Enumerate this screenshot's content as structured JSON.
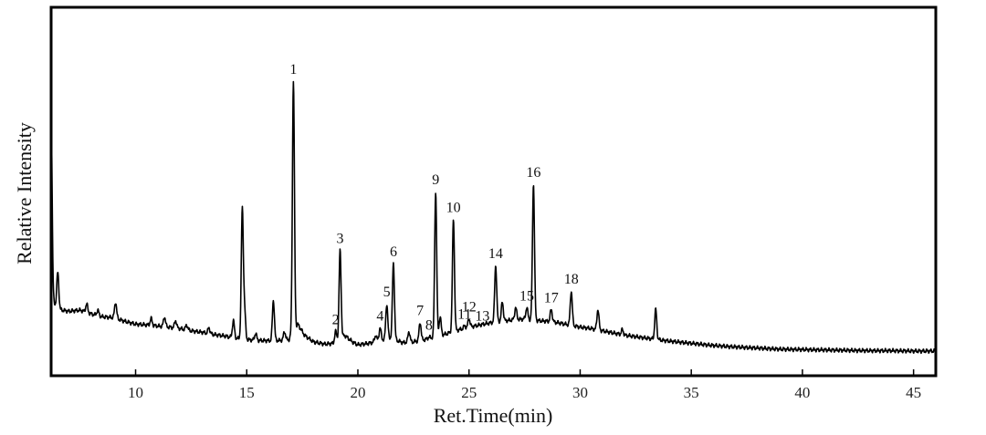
{
  "chart_data": {
    "type": "line",
    "title": "",
    "xlabel": "Ret.Time(min)",
    "ylabel": "Relative Intensity",
    "xlim": [
      6.2,
      46
    ],
    "ylim": [
      0,
      100
    ],
    "x_ticks": [
      10,
      15,
      20,
      25,
      30,
      35,
      40,
      45
    ],
    "x_tick_labels": [
      "10",
      "15",
      "20",
      "25",
      "30",
      "35",
      "40",
      "45"
    ],
    "y_ticks_shown": false,
    "grid": false,
    "legend": "none",
    "line_color": "#000000",
    "baseline_points": [
      [
        6.2,
        21.0
      ],
      [
        6.5,
        18.0
      ],
      [
        7.0,
        17.5
      ],
      [
        7.5,
        17.8
      ],
      [
        8.0,
        16.8
      ],
      [
        8.5,
        16.0
      ],
      [
        9.0,
        15.8
      ],
      [
        9.5,
        14.8
      ],
      [
        10.0,
        14.0
      ],
      [
        10.5,
        13.8
      ],
      [
        11.0,
        13.5
      ],
      [
        11.5,
        13.2
      ],
      [
        12.0,
        12.8
      ],
      [
        12.5,
        12.2
      ],
      [
        13.0,
        11.8
      ],
      [
        13.5,
        11.2
      ],
      [
        14.0,
        10.8
      ],
      [
        14.5,
        10.2
      ],
      [
        15.0,
        9.8
      ],
      [
        15.5,
        9.6
      ],
      [
        16.0,
        9.5
      ],
      [
        16.5,
        9.6
      ],
      [
        16.9,
        9.8
      ],
      [
        17.3,
        14.0
      ],
      [
        17.6,
        11.0
      ],
      [
        18.0,
        9.2
      ],
      [
        18.5,
        8.6
      ],
      [
        19.0,
        8.8
      ],
      [
        19.4,
        11.0
      ],
      [
        19.8,
        9.0
      ],
      [
        20.0,
        8.4
      ],
      [
        20.5,
        8.8
      ],
      [
        21.0,
        9.6
      ],
      [
        21.5,
        10.2
      ],
      [
        22.0,
        9.0
      ],
      [
        22.5,
        9.2
      ],
      [
        23.0,
        9.8
      ],
      [
        23.5,
        10.6
      ],
      [
        24.0,
        11.4
      ],
      [
        24.5,
        12.4
      ],
      [
        25.0,
        13.2
      ],
      [
        25.5,
        13.8
      ],
      [
        26.0,
        14.4
      ],
      [
        26.5,
        14.8
      ],
      [
        27.0,
        15.2
      ],
      [
        27.5,
        15.4
      ],
      [
        28.0,
        15.0
      ],
      [
        28.5,
        14.8
      ],
      [
        29.0,
        14.4
      ],
      [
        29.5,
        13.8
      ],
      [
        30.0,
        13.2
      ],
      [
        30.5,
        12.8
      ],
      [
        31.0,
        12.2
      ],
      [
        31.5,
        11.6
      ],
      [
        32.0,
        11.0
      ],
      [
        33.0,
        10.2
      ],
      [
        34.0,
        9.4
      ],
      [
        35.0,
        8.8
      ],
      [
        36.0,
        8.2
      ],
      [
        37.0,
        7.8
      ],
      [
        38.0,
        7.5
      ],
      [
        39.0,
        7.2
      ],
      [
        40.0,
        7.1
      ],
      [
        41.0,
        7.0
      ],
      [
        42.0,
        6.9
      ],
      [
        43.0,
        6.8
      ],
      [
        44.0,
        6.8
      ],
      [
        45.0,
        6.7
      ],
      [
        46.0,
        6.7
      ]
    ],
    "unlabeled_peaks": [
      {
        "x": 6.2,
        "y": 70.0
      },
      {
        "x": 6.5,
        "y": 28.0
      },
      {
        "x": 7.8,
        "y": 19.5
      },
      {
        "x": 8.3,
        "y": 17.8
      },
      {
        "x": 9.1,
        "y": 20.0
      },
      {
        "x": 10.7,
        "y": 15.5
      },
      {
        "x": 11.3,
        "y": 16.0
      },
      {
        "x": 11.8,
        "y": 15.0
      },
      {
        "x": 12.3,
        "y": 13.8
      },
      {
        "x": 13.3,
        "y": 13.0
      },
      {
        "x": 14.4,
        "y": 15.0
      },
      {
        "x": 14.8,
        "y": 45.0
      },
      {
        "x": 14.9,
        "y": 18.0
      },
      {
        "x": 15.4,
        "y": 11.5
      },
      {
        "x": 16.2,
        "y": 20.5
      },
      {
        "x": 16.7,
        "y": 12.0
      },
      {
        "x": 20.8,
        "y": 11.0
      },
      {
        "x": 22.3,
        "y": 12.0
      },
      {
        "x": 23.7,
        "y": 16.0
      },
      {
        "x": 26.5,
        "y": 20.0
      },
      {
        "x": 27.1,
        "y": 18.5
      },
      {
        "x": 30.8,
        "y": 18.0
      },
      {
        "x": 31.9,
        "y": 12.5
      },
      {
        "x": 33.4,
        "y": 18.0
      }
    ],
    "labeled_peaks": [
      {
        "label": "1",
        "x": 17.1,
        "y": 80.0
      },
      {
        "label": "2",
        "x": 19.0,
        "y": 12.0
      },
      {
        "label": "3",
        "x": 19.2,
        "y": 34.0
      },
      {
        "label": "4",
        "x": 21.0,
        "y": 13.0
      },
      {
        "label": "5",
        "x": 21.3,
        "y": 19.5
      },
      {
        "label": "6",
        "x": 21.6,
        "y": 30.5
      },
      {
        "label": "7",
        "x": 22.8,
        "y": 14.5
      },
      {
        "label": "8",
        "x": 23.2,
        "y": 10.5
      },
      {
        "label": "9",
        "x": 23.5,
        "y": 50.0
      },
      {
        "label": "10",
        "x": 24.3,
        "y": 42.5
      },
      {
        "label": "11",
        "x": 24.8,
        "y": 13.5
      },
      {
        "label": "12",
        "x": 25.0,
        "y": 15.5
      },
      {
        "label": "13",
        "x": 25.6,
        "y": 13.0
      },
      {
        "label": "14",
        "x": 26.2,
        "y": 30.0
      },
      {
        "label": "15",
        "x": 27.6,
        "y": 18.5
      },
      {
        "label": "16",
        "x": 27.9,
        "y": 52.0
      },
      {
        "label": "17",
        "x": 28.7,
        "y": 18.0
      },
      {
        "label": "18",
        "x": 29.6,
        "y": 23.0
      }
    ]
  }
}
